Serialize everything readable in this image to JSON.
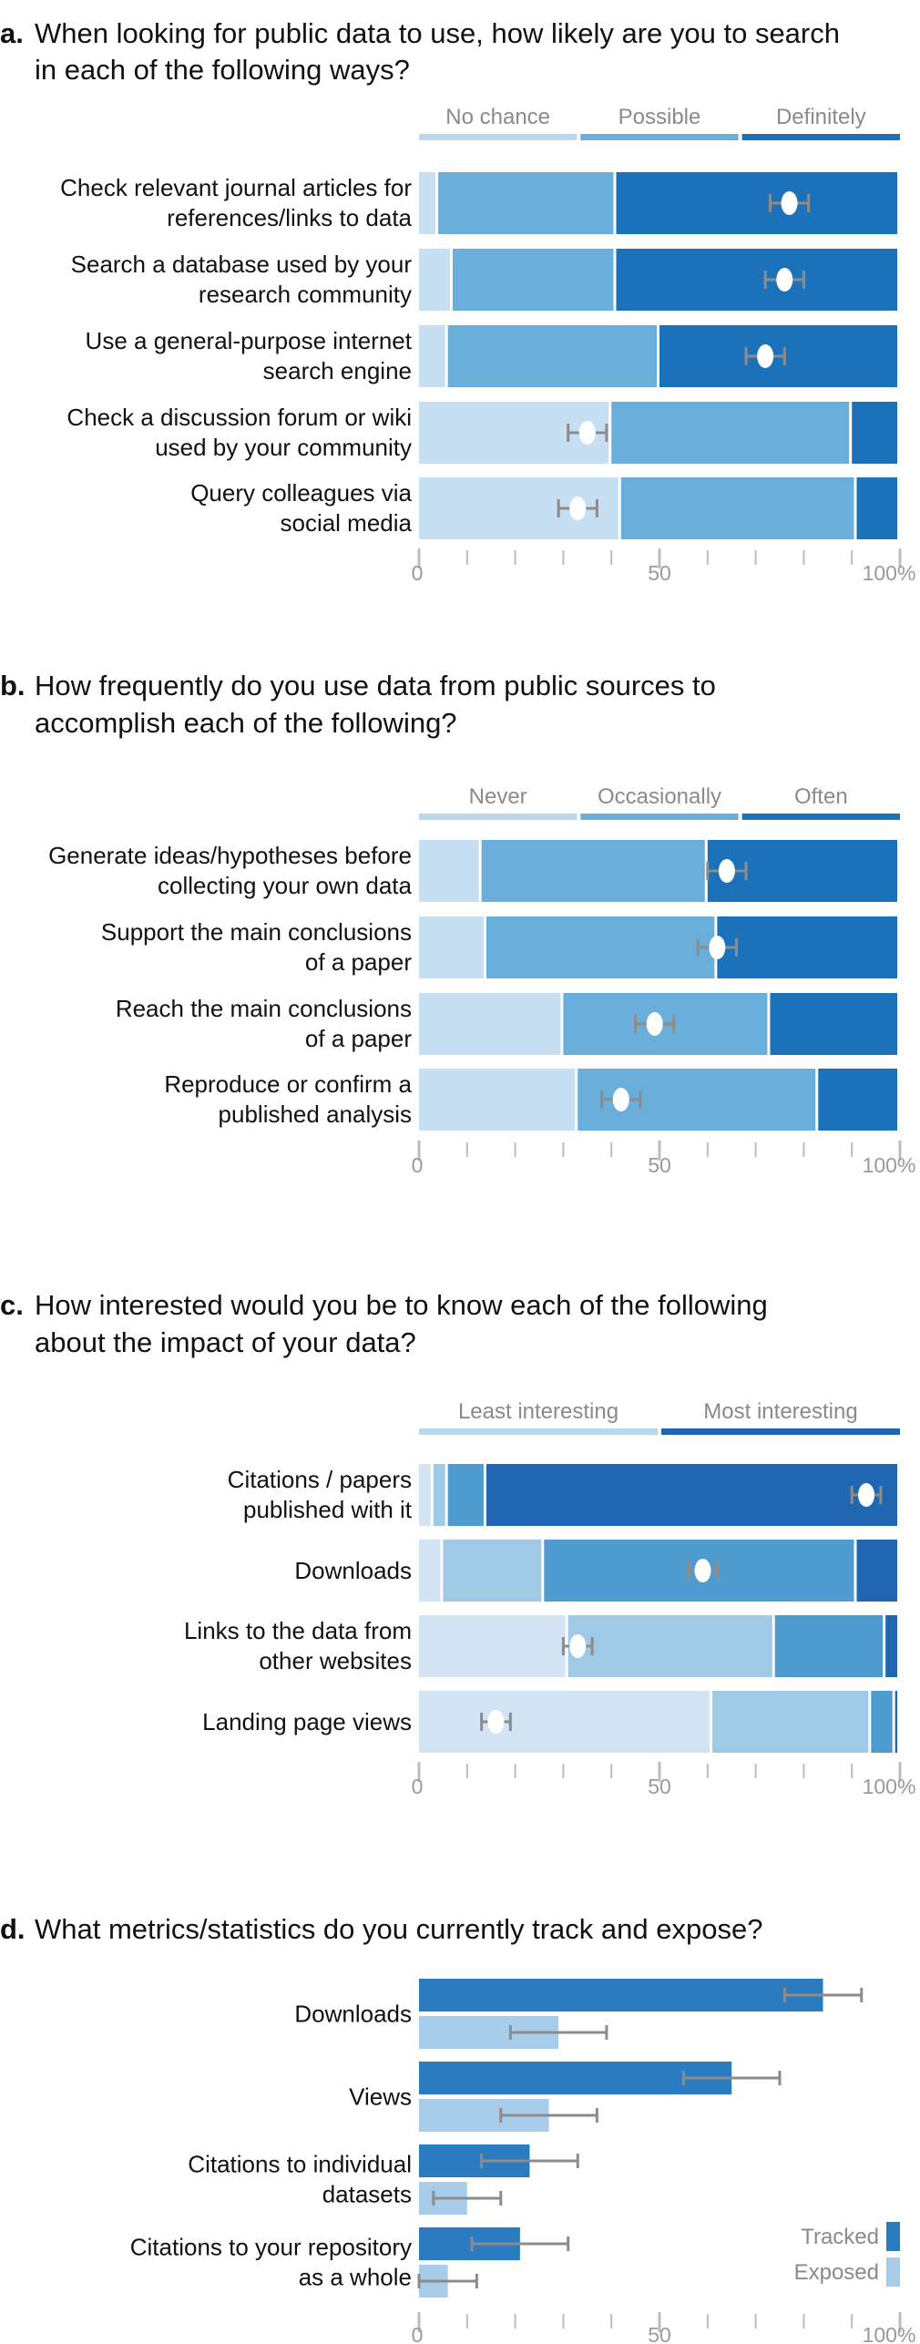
{
  "panels": [
    {
      "letter": "a.",
      "question_lines": [
        "When looking for public data to use, how likely are you to search",
        "in each of the following ways?"
      ],
      "legend": [
        "No chance",
        "Possible",
        "Definitely"
      ],
      "legend_colors": [
        "#bad7ee",
        "#6aaedb",
        "#1c72ba"
      ],
      "colors": [
        "#c6dff2",
        "#6aaedb",
        "#1c72ba"
      ],
      "chart_data": {
        "type": "bar",
        "orientation": "horizontal-stacked",
        "categories": [
          [
            "Check relevant journal articles for",
            "references/links to data"
          ],
          [
            "Search a database used by your",
            "research community"
          ],
          [
            "Use a general-purpose internet",
            "search engine"
          ],
          [
            "Check a discussion forum or wiki",
            "used by your community"
          ],
          [
            "Query colleagues via",
            "social media"
          ]
        ],
        "segments": [
          [
            4,
            37,
            59
          ],
          [
            7,
            34,
            59
          ],
          [
            6,
            44,
            50
          ],
          [
            40,
            50,
            10
          ],
          [
            42,
            49,
            9
          ]
        ],
        "mean": [
          77,
          76,
          72,
          35,
          33
        ],
        "error": [
          4,
          4,
          4,
          4,
          4
        ],
        "xlim": [
          0,
          100
        ],
        "ticks": [
          "0",
          "50",
          "100%"
        ]
      }
    },
    {
      "letter": "b.",
      "question_lines": [
        "How frequently do you use data from public sources to",
        "accomplish each of the following?"
      ],
      "legend": [
        "Never",
        "Occasionally",
        "Often"
      ],
      "legend_colors": [
        "#bad7ee",
        "#6aaedb",
        "#1c72ba"
      ],
      "colors": [
        "#c6dff2",
        "#6aaedb",
        "#1c72ba"
      ],
      "chart_data": {
        "type": "bar",
        "orientation": "horizontal-stacked",
        "categories": [
          [
            "Generate ideas/hypotheses before",
            "collecting your own data"
          ],
          [
            "Support the main conclusions",
            "of a paper"
          ],
          [
            "Reach the main conclusions",
            "of a paper"
          ],
          [
            "Reproduce or confirm a",
            "published analysis"
          ]
        ],
        "segments": [
          [
            13,
            47,
            40
          ],
          [
            14,
            48,
            38
          ],
          [
            30,
            43,
            27
          ],
          [
            33,
            50,
            17
          ]
        ],
        "mean": [
          64,
          62,
          49,
          42
        ],
        "error": [
          4,
          4,
          4,
          4
        ],
        "xlim": [
          0,
          100
        ],
        "ticks": [
          "0",
          "50",
          "100%"
        ]
      }
    },
    {
      "letter": "c.",
      "question_lines": [
        "How interested would you be to know each of the following",
        "about the impact of your data?"
      ],
      "legend": [
        "Least interesting",
        "Most interesting"
      ],
      "legend_colors": [
        "#bad7ee",
        "#2166b0"
      ],
      "colors": [
        "#d3e5f4",
        "#a0c9e6",
        "#4f9bd0",
        "#2166b0"
      ],
      "chart_data": {
        "type": "bar",
        "orientation": "horizontal-stacked",
        "categories": [
          [
            "Citations / papers",
            "published with it"
          ],
          [
            "Downloads"
          ],
          [
            "Links to the data from",
            "other websites"
          ],
          [
            "Landing page views"
          ]
        ],
        "segments": [
          [
            3,
            3,
            8,
            86
          ],
          [
            5,
            21,
            65,
            9
          ],
          [
            31,
            43,
            23,
            3
          ],
          [
            61,
            33,
            5,
            1
          ]
        ],
        "mean": [
          93,
          59,
          33,
          16
        ],
        "error": [
          3,
          3,
          3,
          3
        ],
        "xlim": [
          0,
          100
        ],
        "ticks": [
          "0",
          "50",
          "100%"
        ]
      }
    },
    {
      "letter": "d.",
      "question_lines": [
        "What metrics/statistics do you currently track and expose?"
      ],
      "legend": [
        "Tracked",
        "Exposed"
      ],
      "legend_colors": [
        "#2a7bbf",
        "#a7cdea"
      ],
      "colors": [
        "#2a7bbf",
        "#a7cdea"
      ],
      "chart_data": {
        "type": "bar",
        "orientation": "horizontal-grouped",
        "categories": [
          [
            "Downloads"
          ],
          [
            "Views"
          ],
          [
            "Citations to individual",
            "datasets"
          ],
          [
            "Citations to your repository",
            "as a whole"
          ]
        ],
        "series": [
          {
            "name": "Tracked",
            "values": [
              84,
              65,
              23,
              21
            ],
            "error": [
              8,
              10,
              10,
              10
            ]
          },
          {
            "name": "Exposed",
            "values": [
              29,
              27,
              10,
              6
            ],
            "error": [
              10,
              10,
              7,
              6
            ]
          }
        ],
        "xlim": [
          0,
          100
        ],
        "ticks": [
          "0",
          "50",
          "100%"
        ]
      }
    }
  ]
}
